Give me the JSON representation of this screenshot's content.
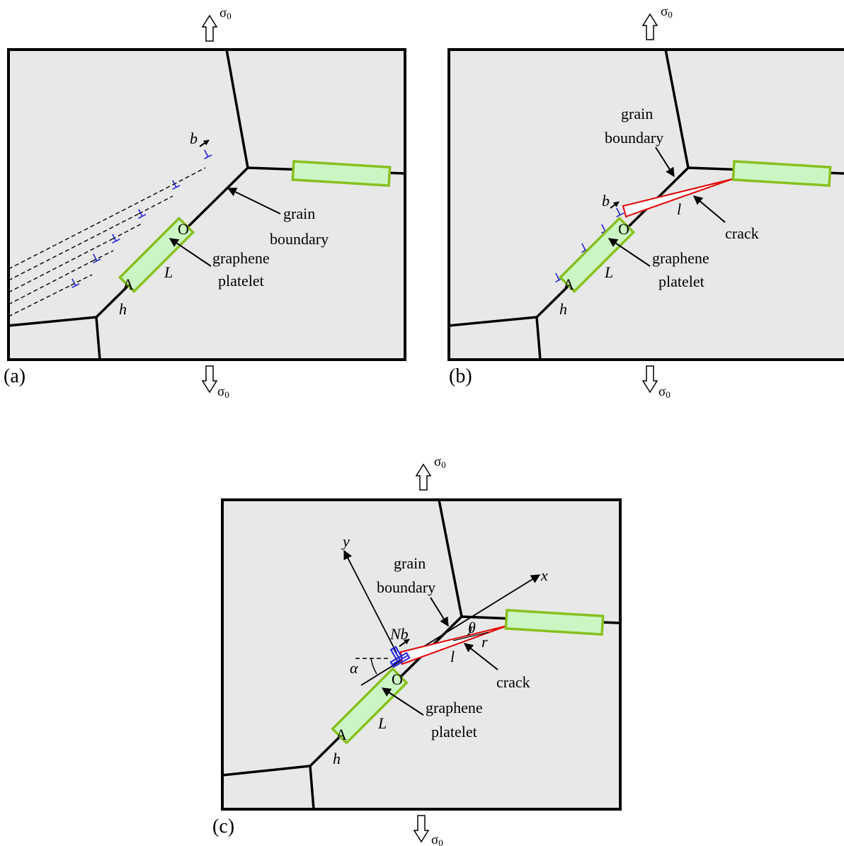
{
  "stress_symbol": "σ",
  "stress_subscript": "0",
  "panel_a": {
    "tag": "(a)",
    "burgers": "b",
    "grain_boundary": [
      "grain",
      "boundary"
    ],
    "platelet": [
      "graphene",
      "platelet"
    ],
    "point_o": "O",
    "point_a": "A",
    "length": "L",
    "thickness": "h"
  },
  "panel_b": {
    "tag": "(b)",
    "burgers": "b",
    "grain_boundary": [
      "grain",
      "boundary"
    ],
    "platelet": [
      "graphene",
      "platelet"
    ],
    "crack": "crack",
    "crack_length": "l",
    "point_o": "O",
    "point_a": "A",
    "length": "L",
    "thickness": "h"
  },
  "panel_c": {
    "tag": "(c)",
    "axis_x": "x",
    "axis_y": "y",
    "burgers_total": "Nb",
    "grain_boundary": [
      "grain",
      "boundary"
    ],
    "platelet": [
      "graphene",
      "platelet"
    ],
    "crack": "crack",
    "crack_length": "l",
    "theta": "θ",
    "radius": "r",
    "alpha": "α",
    "point_o": "O",
    "point_a": "A",
    "length": "L",
    "thickness": "h"
  },
  "colors": {
    "panel_fill": "#e8e8e8",
    "platelet_fill": "#ccf5c4",
    "platelet_stroke": "#88c020",
    "dislocation": "#2020e0",
    "crack": "#e00000"
  }
}
